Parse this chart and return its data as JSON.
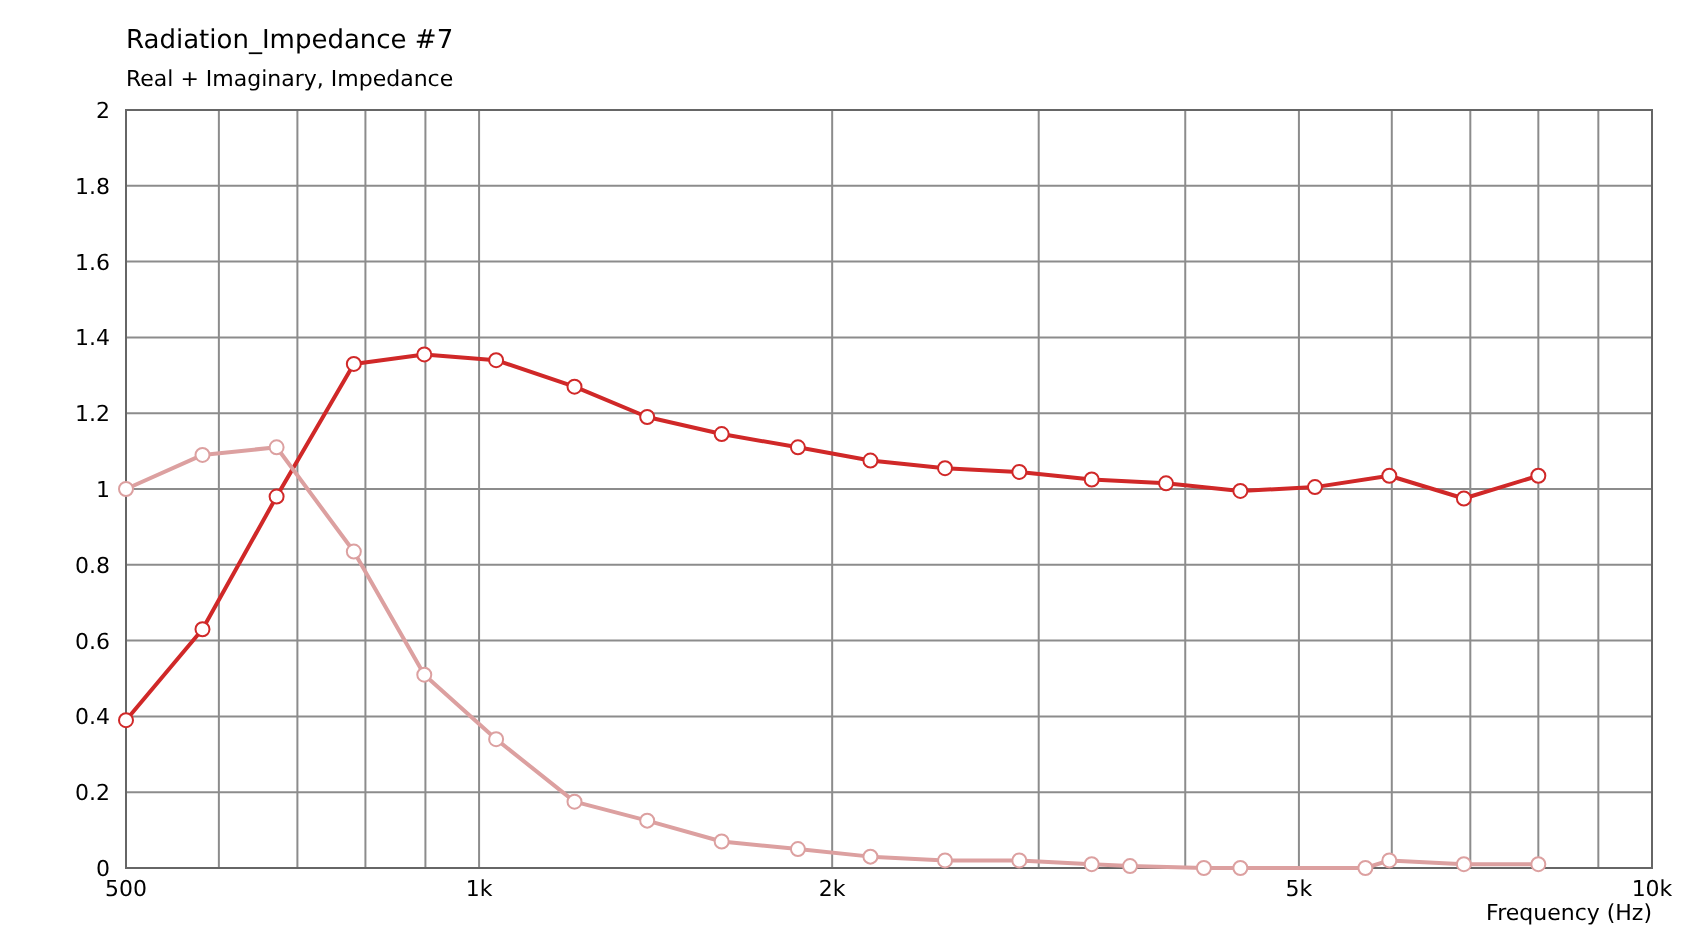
{
  "chart_data": {
    "type": "line",
    "title": "Radiation_Impedance #7",
    "subtitle": "Real + Imaginary, Impedance",
    "xlabel": "Frequency  (Hz)",
    "log": "x",
    "xlim": [
      500,
      10000
    ],
    "ylim": [
      0,
      2
    ],
    "xticks": [
      {
        "value": 500,
        "label": "500"
      },
      {
        "value": 600,
        "label": null
      },
      {
        "value": 700,
        "label": null
      },
      {
        "value": 800,
        "label": null
      },
      {
        "value": 900,
        "label": null
      },
      {
        "value": 1000,
        "label": "1k"
      },
      {
        "value": 2000,
        "label": "2k"
      },
      {
        "value": 3000,
        "label": null
      },
      {
        "value": 4000,
        "label": null
      },
      {
        "value": 5000,
        "label": "5k"
      },
      {
        "value": 6000,
        "label": null
      },
      {
        "value": 7000,
        "label": null
      },
      {
        "value": 8000,
        "label": null
      },
      {
        "value": 9000,
        "label": null
      },
      {
        "value": 10000,
        "label": "10k"
      }
    ],
    "yticks": [
      0,
      0.2,
      0.4,
      0.6,
      0.8,
      1,
      1.2,
      1.4,
      1.6,
      1.8,
      2
    ],
    "grid": true,
    "marker": "circle",
    "line_style": "solid",
    "series": [
      {
        "color": "#d02828",
        "x": [
          500,
          581,
          672,
          782,
          898,
          1034,
          1206,
          1391,
          1610,
          1870,
          2156,
          2496,
          2888,
          3329,
          3852,
          4457,
          5160,
          5971,
          6912,
          8000
        ],
        "values": [
          0.39,
          0.63,
          0.98,
          1.33,
          1.355,
          1.34,
          1.27,
          1.19,
          1.145,
          1.11,
          1.075,
          1.055,
          1.045,
          1.025,
          1.015,
          0.995,
          1.005,
          1.035,
          0.975,
          1.035
        ]
      },
      {
        "color": "#dca0a0",
        "x": [
          500,
          581,
          672,
          782,
          898,
          1034,
          1206,
          1391,
          1610,
          1870,
          2156,
          2496,
          2888,
          3329,
          3589,
          4149,
          4457,
          5697,
          5971,
          6912,
          8000
        ],
        "values": [
          1.0,
          1.09,
          1.11,
          0.835,
          0.51,
          0.34,
          0.175,
          0.125,
          0.07,
          0.05,
          0.03,
          0.02,
          0.02,
          0.01,
          0.005,
          0,
          0,
          0,
          0.02,
          0.01,
          0.01
        ]
      }
    ]
  }
}
